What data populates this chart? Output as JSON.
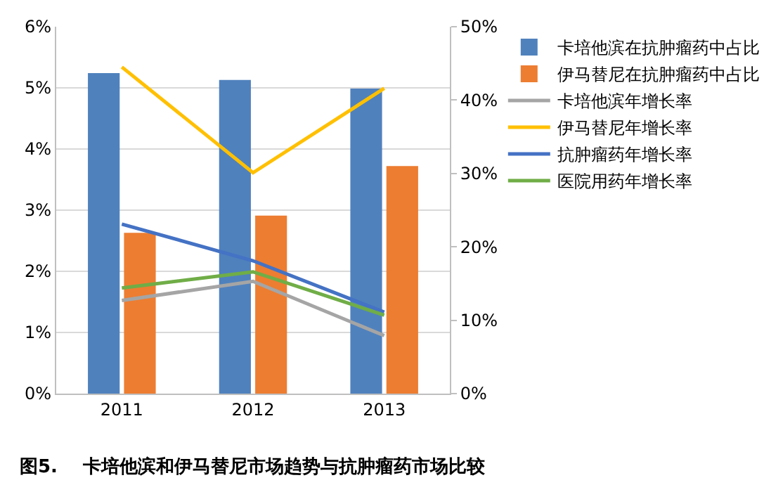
{
  "chart_data": {
    "type": "bar",
    "categories": [
      "2011",
      "2012",
      "2013"
    ],
    "series": [
      {
        "name": "卡培他滨在抗肿瘤药中占比",
        "color": "#4f81bd",
        "values": [
          5.24,
          5.13,
          4.99
        ]
      },
      {
        "name": "伊马替尼在抗肿瘤药中占比",
        "color": "#ed7d31",
        "values": [
          2.63,
          2.91,
          3.72
        ]
      },
      {
        "name": "卡培他滨年增长率",
        "type": "line",
        "axis": "y2",
        "color": "#a5a5a5",
        "values": [
          12.7,
          15.3,
          7.9
        ]
      },
      {
        "name": "伊马替尼年增长率",
        "type": "line",
        "axis": "y2",
        "color": "#ffc000",
        "values": [
          44.5,
          30.1,
          41.6
        ]
      },
      {
        "name": "抗肿瘤药年增长率",
        "type": "line",
        "axis": "y2",
        "color": "#4472c4",
        "values": [
          23.1,
          18.1,
          11.1
        ]
      },
      {
        "name": "医院用药年增长率",
        "type": "line",
        "axis": "y2",
        "color": "#70ad47",
        "values": [
          14.4,
          16.6,
          10.7
        ]
      }
    ],
    "ylim": [
      0,
      6
    ],
    "yticks": [
      {
        "value": 0,
        "label": "0%"
      },
      {
        "value": 1,
        "label": "1%"
      },
      {
        "value": 2,
        "label": "2%"
      },
      {
        "value": 3,
        "label": "3%"
      },
      {
        "value": 4,
        "label": "4%"
      },
      {
        "value": 5,
        "label": "5%"
      },
      {
        "value": 6,
        "label": "6%"
      }
    ],
    "y2lim": [
      0,
      50
    ],
    "y2ticks": [
      {
        "value": 0,
        "label": "0%"
      },
      {
        "value": 10,
        "label": "10%"
      },
      {
        "value": 20,
        "label": "20%"
      },
      {
        "value": 30,
        "label": "30%"
      },
      {
        "value": 40,
        "label": "40%"
      },
      {
        "value": 50,
        "label": "50%"
      }
    ],
    "grid": "y",
    "legend": "right",
    "marker": "none",
    "annotations": [
      "图5.    卡培他滨和伊马替尼市场趋势与抗肿瘤药市场比较"
    ]
  }
}
